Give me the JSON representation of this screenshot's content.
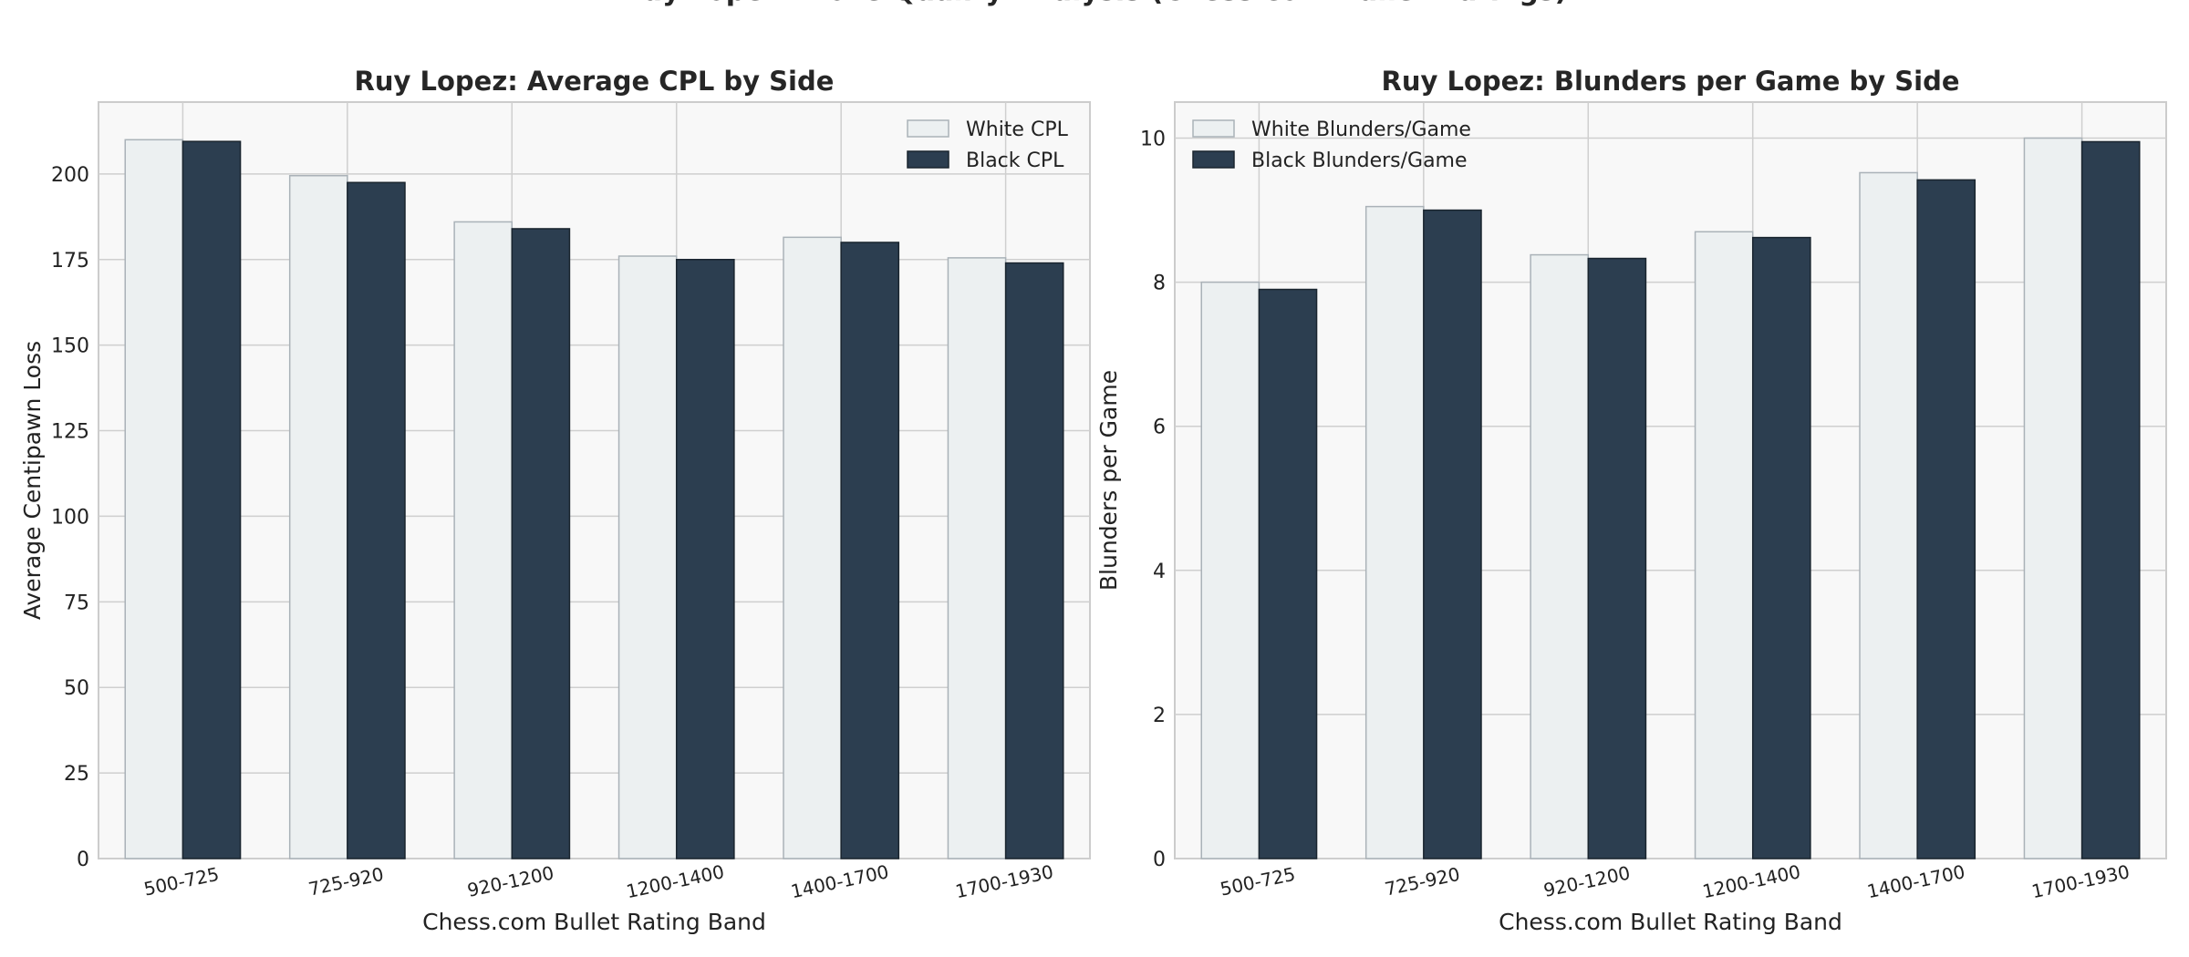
{
  "figure": {
    "title": "Ruy Lopez: Move Quality Analysis (Chess.com Bullet Ratings)"
  },
  "colors": {
    "white_bar": "#ecf0f1",
    "white_edge": "#aab2b8",
    "black_bar": "#2c3e50",
    "black_edge": "#1a252f"
  },
  "chart_data": [
    {
      "type": "bar",
      "title": "Ruy Lopez: Average CPL by Side",
      "xlabel": "Chess.com Bullet Rating Band",
      "ylabel": "Average Centipawn Loss",
      "categories": [
        "500-725",
        "725-920",
        "920-1200",
        "1200-1400",
        "1400-1700",
        "1700-1930"
      ],
      "series": [
        {
          "name": "White CPL",
          "values": [
            210,
            199.5,
            186,
            176,
            181.5,
            175.5
          ]
        },
        {
          "name": "Black CPL",
          "values": [
            209.5,
            197.5,
            184,
            175,
            180,
            174
          ]
        }
      ],
      "ylim": [
        0,
        221
      ],
      "yticks": [
        0,
        25,
        50,
        75,
        100,
        125,
        150,
        175,
        200
      ],
      "grid": true,
      "legend": "top-right"
    },
    {
      "type": "bar",
      "title": "Ruy Lopez: Blunders per Game by Side",
      "xlabel": "Chess.com Bullet Rating Band",
      "ylabel": "Blunders per Game",
      "categories": [
        "500-725",
        "725-920",
        "920-1200",
        "1200-1400",
        "1400-1700",
        "1700-1930"
      ],
      "series": [
        {
          "name": "White Blunders/Game",
          "values": [
            8.0,
            9.05,
            8.38,
            8.7,
            9.52,
            10.0
          ]
        },
        {
          "name": "Black Blunders/Game",
          "values": [
            7.9,
            9.0,
            8.33,
            8.62,
            9.42,
            9.95
          ]
        }
      ],
      "ylim": [
        0,
        10.5
      ],
      "yticks": [
        0,
        2,
        4,
        6,
        8,
        10
      ],
      "grid": true,
      "legend": "top-left"
    }
  ]
}
